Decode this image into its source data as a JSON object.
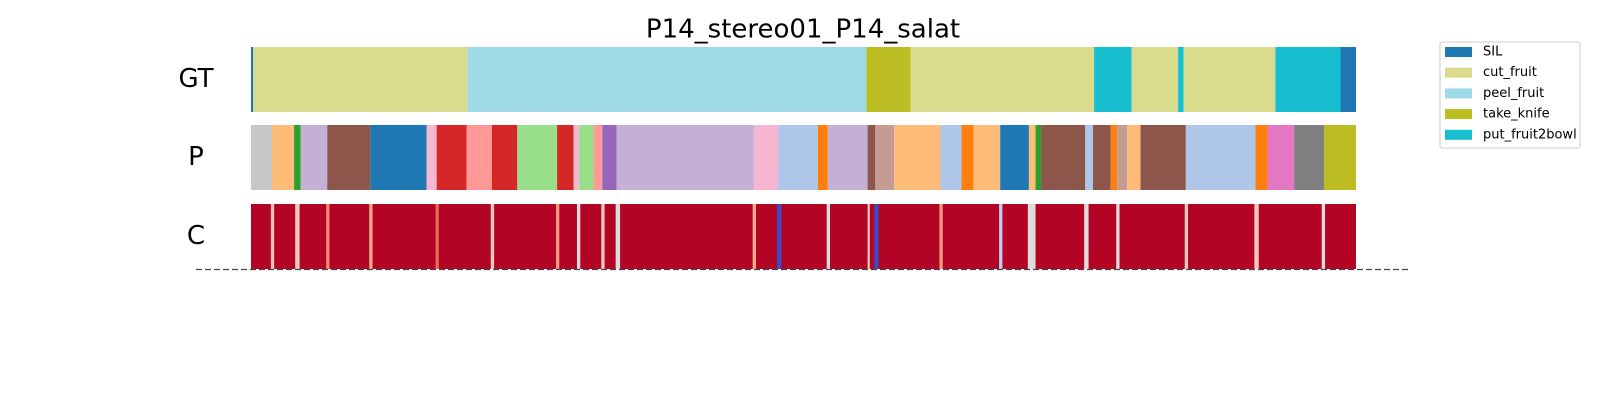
{
  "chart_data": {
    "type": "segmentation",
    "title": "P14_stereo01_P14_salat",
    "xlim": [
      0,
      100
    ],
    "rows": [
      {
        "name": "GT",
        "segments": [
          {
            "start": 0,
            "end": 0.2,
            "color": "#1f77b4"
          },
          {
            "start": 0.2,
            "end": 19.6,
            "color": "#dbdb8d"
          },
          {
            "start": 19.6,
            "end": 55.7,
            "color": "#9edae5"
          },
          {
            "start": 55.7,
            "end": 59.7,
            "color": "#bcbd22"
          },
          {
            "start": 59.7,
            "end": 76.3,
            "color": "#dbdb8d"
          },
          {
            "start": 76.3,
            "end": 79.7,
            "color": "#17becf"
          },
          {
            "start": 79.7,
            "end": 83.9,
            "color": "#dbdb8d"
          },
          {
            "start": 83.9,
            "end": 84.4,
            "color": "#17becf"
          },
          {
            "start": 84.4,
            "end": 92.7,
            "color": "#dbdb8d"
          },
          {
            "start": 92.7,
            "end": 98.6,
            "color": "#17becf"
          },
          {
            "start": 98.6,
            "end": 100,
            "color": "#1f77b4"
          }
        ]
      },
      {
        "name": "P",
        "segments": [
          {
            "start": 0,
            "end": 1.9,
            "color": "#c7c7c7"
          },
          {
            "start": 1.9,
            "end": 3.9,
            "color": "#ffbb78"
          },
          {
            "start": 3.9,
            "end": 4.5,
            "color": "#2ca02c"
          },
          {
            "start": 4.5,
            "end": 6.9,
            "color": "#c5b0d5"
          },
          {
            "start": 6.9,
            "end": 10.8,
            "color": "#8c564b"
          },
          {
            "start": 10.8,
            "end": 15.9,
            "color": "#1f77b4"
          },
          {
            "start": 15.9,
            "end": 16.8,
            "color": "#f7b6d2"
          },
          {
            "start": 16.8,
            "end": 19.5,
            "color": "#d62728"
          },
          {
            "start": 19.5,
            "end": 21.8,
            "color": "#ff9896"
          },
          {
            "start": 21.8,
            "end": 24.1,
            "color": "#d62728"
          },
          {
            "start": 24.1,
            "end": 27.7,
            "color": "#98df8a"
          },
          {
            "start": 27.7,
            "end": 29.2,
            "color": "#d62728"
          },
          {
            "start": 29.2,
            "end": 29.7,
            "color": "#f7b6d2"
          },
          {
            "start": 29.7,
            "end": 31.0,
            "color": "#98df8a"
          },
          {
            "start": 31.0,
            "end": 31.8,
            "color": "#ff9896"
          },
          {
            "start": 31.8,
            "end": 33.1,
            "color": "#9467bd"
          },
          {
            "start": 33.1,
            "end": 45.5,
            "color": "#c5b0d5"
          },
          {
            "start": 45.5,
            "end": 47.7,
            "color": "#f7b6d2"
          },
          {
            "start": 47.7,
            "end": 51.3,
            "color": "#aec7e8"
          },
          {
            "start": 51.3,
            "end": 52.2,
            "color": "#ff7f0e"
          },
          {
            "start": 52.2,
            "end": 55.8,
            "color": "#c5b0d5"
          },
          {
            "start": 55.8,
            "end": 56.5,
            "color": "#8c564b"
          },
          {
            "start": 56.5,
            "end": 58.2,
            "color": "#c49c94"
          },
          {
            "start": 58.2,
            "end": 62.4,
            "color": "#ffbb78"
          },
          {
            "start": 62.4,
            "end": 64.3,
            "color": "#aec7e8"
          },
          {
            "start": 64.3,
            "end": 65.4,
            "color": "#ff7f0e"
          },
          {
            "start": 65.4,
            "end": 67.8,
            "color": "#ffbb78"
          },
          {
            "start": 67.8,
            "end": 70.4,
            "color": "#1f77b4"
          },
          {
            "start": 70.4,
            "end": 71.0,
            "color": "#ffbb78"
          },
          {
            "start": 71.0,
            "end": 71.5,
            "color": "#2ca02c"
          },
          {
            "start": 71.5,
            "end": 75.5,
            "color": "#8c564b"
          },
          {
            "start": 75.5,
            "end": 76.2,
            "color": "#aec7e8"
          },
          {
            "start": 76.2,
            "end": 77.8,
            "color": "#8c564b"
          },
          {
            "start": 77.8,
            "end": 78.4,
            "color": "#ff7f0e"
          },
          {
            "start": 78.4,
            "end": 79.3,
            "color": "#c49c94"
          },
          {
            "start": 79.3,
            "end": 80.5,
            "color": "#ffbb78"
          },
          {
            "start": 80.5,
            "end": 84.6,
            "color": "#8c564b"
          },
          {
            "start": 84.6,
            "end": 90.9,
            "color": "#aec7e8"
          },
          {
            "start": 90.9,
            "end": 92.0,
            "color": "#ff7f0e"
          },
          {
            "start": 92.0,
            "end": 94.4,
            "color": "#e377c2"
          },
          {
            "start": 94.4,
            "end": 97.1,
            "color": "#7f7f7f"
          },
          {
            "start": 97.1,
            "end": 100,
            "color": "#bcbd22"
          }
        ]
      },
      {
        "name": "C",
        "segments": [
          {
            "start": 0,
            "end": 100,
            "color": "#b40426"
          },
          {
            "start": 1.8,
            "end": 2.1,
            "color": "#f4c6b0"
          },
          {
            "start": 4.0,
            "end": 4.4,
            "color": "#f2cbb7"
          },
          {
            "start": 6.8,
            "end": 7.1,
            "color": "#f08a6c"
          },
          {
            "start": 10.7,
            "end": 11.0,
            "color": "#f7ac8e"
          },
          {
            "start": 16.7,
            "end": 17.0,
            "color": "#e36c55"
          },
          {
            "start": 21.7,
            "end": 22.0,
            "color": "#f2cbb7"
          },
          {
            "start": 27.6,
            "end": 27.9,
            "color": "#f49a7b"
          },
          {
            "start": 29.5,
            "end": 29.8,
            "color": "#dddcdc"
          },
          {
            "start": 31.7,
            "end": 32.0,
            "color": "#f2cbb7"
          },
          {
            "start": 33.0,
            "end": 33.4,
            "color": "#dddcdc"
          },
          {
            "start": 45.4,
            "end": 45.7,
            "color": "#f7ac8e"
          },
          {
            "start": 47.6,
            "end": 48.0,
            "color": "#3b4cc0"
          },
          {
            "start": 52.1,
            "end": 52.4,
            "color": "#dddcdc"
          },
          {
            "start": 55.8,
            "end": 56.0,
            "color": "#f2cbb7"
          },
          {
            "start": 56.4,
            "end": 56.8,
            "color": "#3b4cc0"
          },
          {
            "start": 62.3,
            "end": 62.6,
            "color": "#f49a7b"
          },
          {
            "start": 67.7,
            "end": 68.0,
            "color": "#b8d0f9"
          },
          {
            "start": 70.3,
            "end": 71.0,
            "color": "#dddcdc"
          },
          {
            "start": 75.4,
            "end": 75.8,
            "color": "#dddcdc"
          },
          {
            "start": 78.3,
            "end": 78.6,
            "color": "#dddcdc"
          },
          {
            "start": 84.5,
            "end": 84.8,
            "color": "#f2cbb7"
          },
          {
            "start": 90.8,
            "end": 91.2,
            "color": "#f2cbb7"
          },
          {
            "start": 96.9,
            "end": 97.2,
            "color": "#dddcdc"
          }
        ]
      }
    ],
    "legend": [
      {
        "name": "SIL",
        "color": "#1f77b4"
      },
      {
        "name": "cut_fruit",
        "color": "#dbdb8d"
      },
      {
        "name": "peel_fruit",
        "color": "#9edae5"
      },
      {
        "name": "take_knife",
        "color": "#bcbd22"
      },
      {
        "name": "put_fruit2bowl",
        "color": "#17becf"
      }
    ]
  }
}
